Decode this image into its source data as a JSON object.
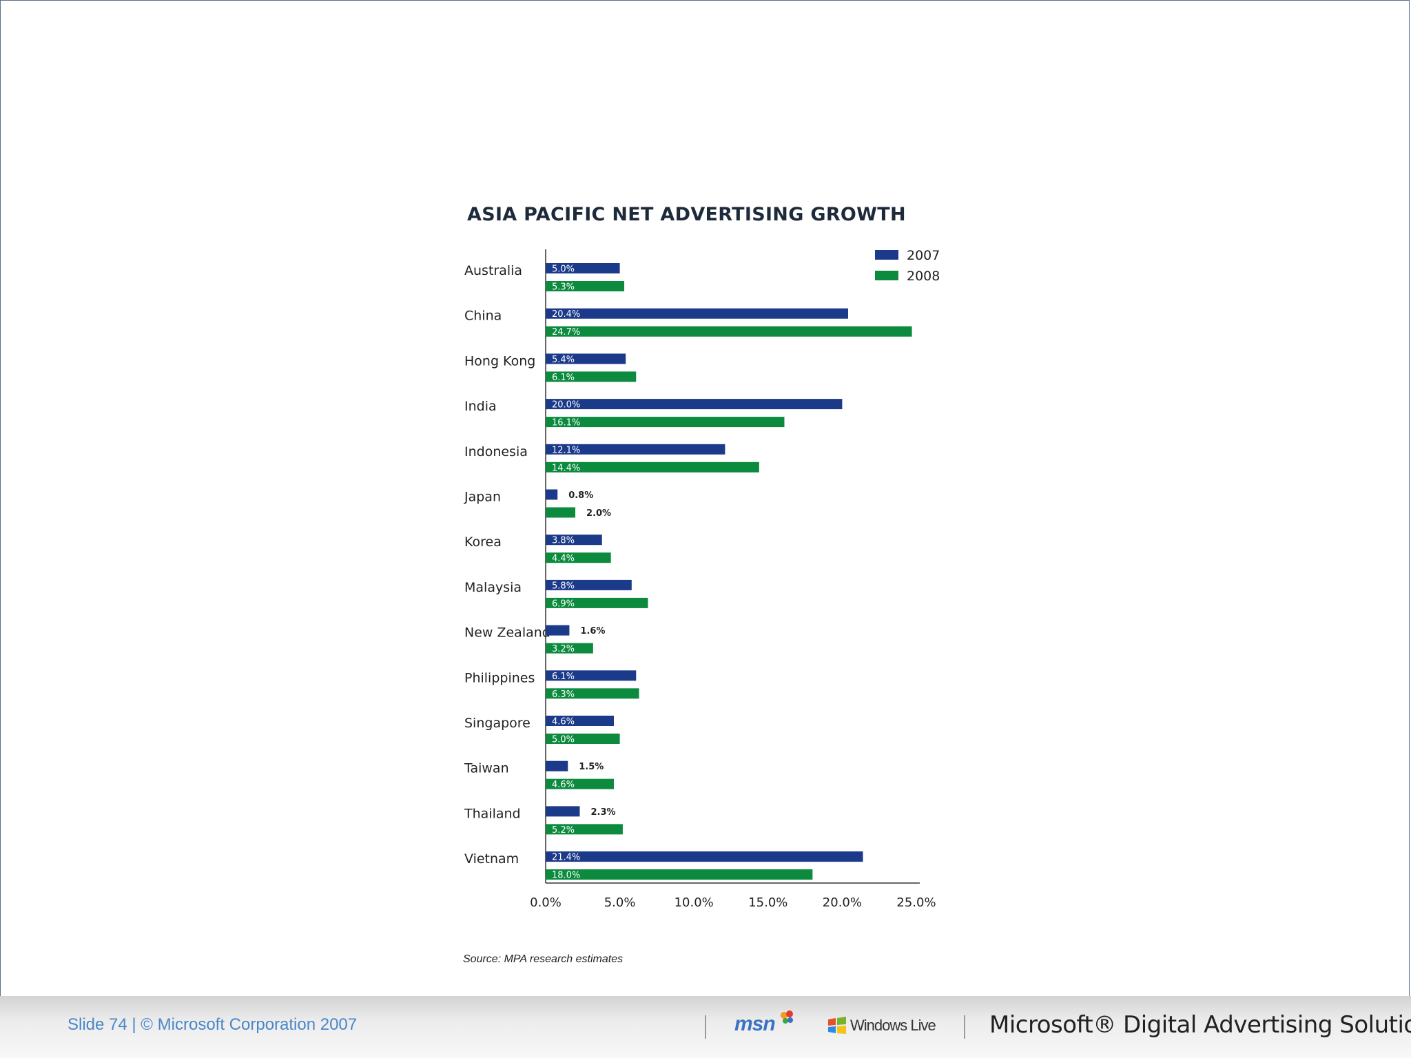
{
  "chart_data": {
    "type": "bar",
    "orientation": "horizontal",
    "title": "ASIA PACIFIC NET ADVERTISING GROWTH",
    "categories": [
      "Australia",
      "China",
      "Hong Kong",
      "India",
      "Indonesia",
      "Japan",
      "Korea",
      "Malaysia",
      "New Zealand",
      "Philippines",
      "Singapore",
      "Taiwan",
      "Thailand",
      "Vietnam"
    ],
    "series": [
      {
        "name": "2007",
        "color": "#1c3a8a",
        "values": [
          5.0,
          20.4,
          5.4,
          20.0,
          12.1,
          0.8,
          3.8,
          5.8,
          1.6,
          6.1,
          4.6,
          1.5,
          2.3,
          21.4
        ],
        "labels": [
          "5.0%",
          "20.4%",
          "5.4%",
          "20.0%",
          "12.1%",
          "0.8%",
          "3.8%",
          "5.8%",
          "1.6%",
          "6.1%",
          "4.6%",
          "1.5%",
          "2.3%",
          "21.4%"
        ]
      },
      {
        "name": "2008",
        "color": "#0c8a3e",
        "values": [
          5.3,
          24.7,
          6.1,
          16.1,
          14.4,
          2.0,
          4.4,
          6.9,
          3.2,
          6.3,
          5.0,
          4.6,
          5.2,
          18.0
        ],
        "labels": [
          "5.3%",
          "24.7%",
          "6.1%",
          "16.1%",
          "14.4%",
          "2.0%",
          "4.4%",
          "6.9%",
          "3.2%",
          "6.3%",
          "5.0%",
          "4.6%",
          "5.2%",
          "18.0%"
        ]
      }
    ],
    "xlim": [
      0,
      25
    ],
    "xticks": [
      0,
      5,
      10,
      15,
      20,
      25
    ],
    "xtick_labels": [
      "0.0%",
      "5.0%",
      "10.0%",
      "15.0%",
      "20.0%",
      "25.0%"
    ],
    "xlabel": "",
    "ylabel": "",
    "legend": {
      "position": "top-right",
      "entries": [
        "2007",
        "2008"
      ]
    },
    "source": "Source: MPA research estimates"
  },
  "footer": {
    "slide_text": "Slide 74 | © Microsoft Corporation 2007",
    "msn_logo": "msn",
    "windows_live_logo": "Windows Live",
    "brand": "Microsoft® Digital Advertising Solutions"
  }
}
